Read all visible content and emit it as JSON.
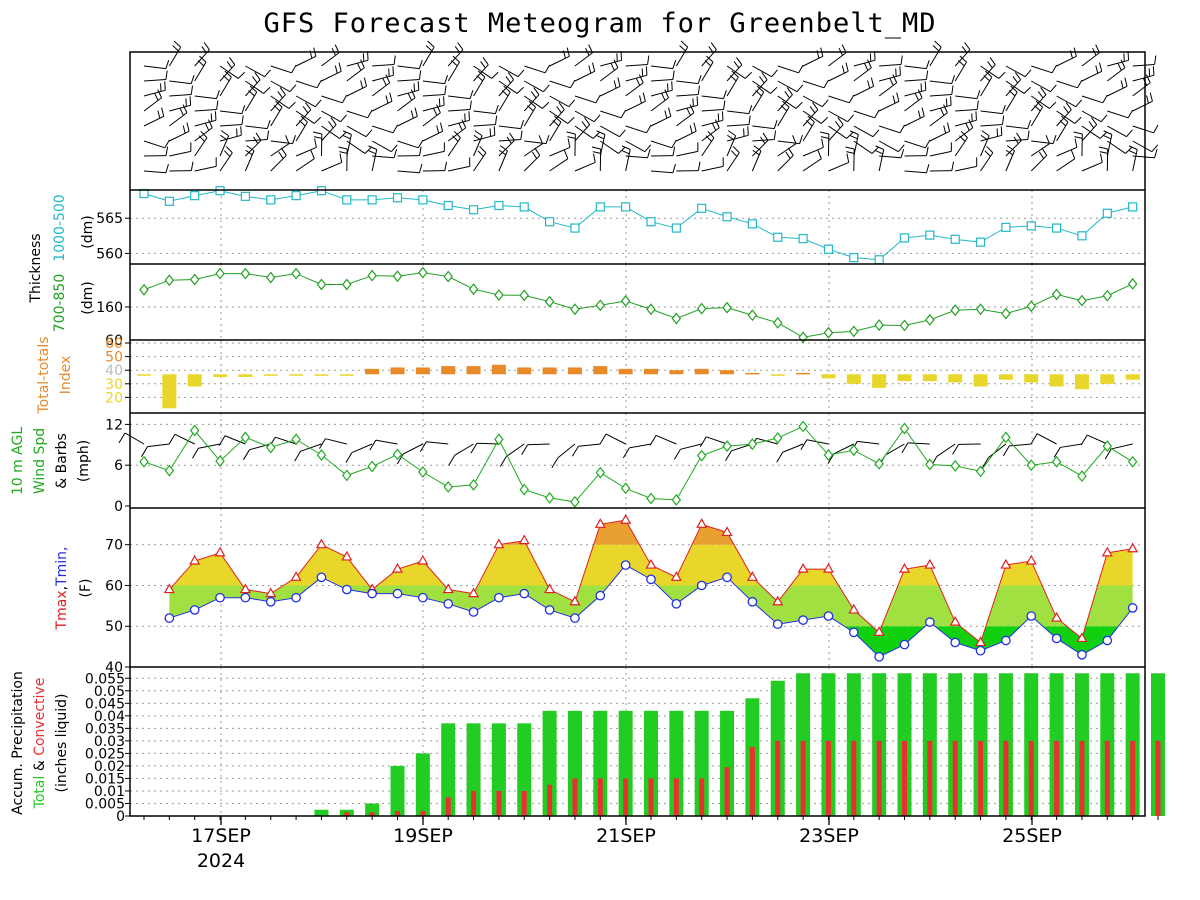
{
  "title": "GFS Forecast Meteogram for Greenbelt_MD",
  "colors": {
    "thickness_500": "#22b8c8",
    "thickness_850": "#22a022",
    "tt_low": "#e8d62a",
    "tt_high": "#e8892a",
    "wind": "#22aa22",
    "tmax": "#e02020",
    "tmin": "#2030e0",
    "precip_total": "#22cc22",
    "precip_conv": "#e83030",
    "temp_band_40_50": "#10d010",
    "temp_band_50_60": "#a0e040",
    "temp_band_60_70": "#e8d62a",
    "temp_band_70_80": "#e8a030"
  },
  "x_axis": {
    "date_labels": [
      "17SEP",
      "19SEP",
      "21SEP",
      "23SEP",
      "25SEP"
    ],
    "year_label": "2024"
  },
  "panel_labels": {
    "thickness_group": "Thickness",
    "thickness_500": "1000-500",
    "thickness_850": "700-850",
    "thickness_unit": "(dm)",
    "tt_line1": "Total-totals",
    "tt_line2": "Index",
    "wind_line1": "10 m AGL",
    "wind_line2": "Wind Spd",
    "wind_line3": "& Barbs",
    "wind_unit": "(mph)",
    "temp_tmax": "Tmax",
    "temp_comma": ",",
    "temp_tmin": "Tmin,",
    "temp_unit": "(F)",
    "precip_line1": "Accum. Precipitation",
    "precip_total": "Total",
    "precip_amp": " & ",
    "precip_conv": "Convective",
    "precip_unit": "(inches liquid)"
  },
  "chart_data": [
    {
      "panel": "upper-air-wind-barbs",
      "type": "barbs"
    },
    {
      "panel": "thickness-1000-500",
      "type": "line",
      "ylabel": "1000-500 (dm)",
      "yticks": [
        560,
        565
      ],
      "ylim": [
        558.5,
        569
      ],
      "values": [
        568.5,
        567.4,
        568.2,
        568.9,
        568.1,
        567.6,
        568.2,
        568.9,
        567.6,
        567.6,
        567.9,
        567.6,
        566.8,
        566.2,
        566.8,
        566.6,
        564.5,
        563.6,
        566.6,
        566.6,
        564.5,
        563.6,
        566.4,
        565.2,
        564.2,
        562.3,
        562.1,
        560.6,
        559.4,
        559.1,
        562.2,
        562.6,
        562,
        561.6,
        563.7,
        563.9,
        563.6,
        562.5,
        565.7,
        566.6
      ]
    },
    {
      "panel": "thickness-700-850",
      "type": "line",
      "ylabel": "700-850 (dm)",
      "yticks": [
        160
      ],
      "ylim": [
        60,
        290
      ],
      "values": [
        212,
        241,
        243,
        261,
        261,
        249,
        261,
        228,
        228,
        255,
        253,
        264,
        252,
        214,
        196,
        195,
        176,
        153,
        165,
        178,
        153,
        125,
        155,
        158,
        135,
        112,
        68,
        82,
        86,
        105,
        104,
        121,
        150,
        153,
        140,
        162,
        198,
        179,
        194,
        230
      ]
    },
    {
      "panel": "total-totals-index",
      "type": "bar",
      "ylabel": "Total-totals Index",
      "yticks": [
        20,
        30,
        40,
        50,
        60
      ],
      "ylim": [
        10,
        60
      ],
      "baseline": 37,
      "values": [
        37,
        12,
        28,
        35,
        35,
        36,
        37,
        37,
        36,
        41,
        42,
        42,
        43,
        43,
        44,
        42,
        42,
        42,
        43,
        41,
        41,
        40,
        41,
        40,
        38,
        37,
        38,
        34,
        30,
        27,
        32,
        32,
        31,
        28,
        33,
        31,
        28,
        26,
        30,
        33
      ]
    },
    {
      "panel": "wind-speed-10m",
      "type": "line",
      "ylabel": "10 m AGL Wind Spd & Barbs (mph)",
      "yticks": [
        0,
        6,
        12
      ],
      "ylim": [
        0,
        12.5
      ],
      "values": [
        6.5,
        5.2,
        11.1,
        6.6,
        10.1,
        8.6,
        9.8,
        7.5,
        4.5,
        5.8,
        7.6,
        5,
        2.8,
        3.1,
        9.8,
        2.4,
        1.2,
        0.6,
        4.9,
        2.6,
        1.1,
        0.9,
        7.4,
        8.8,
        9.1,
        10,
        11.7,
        7.5,
        8.2,
        6.2,
        11.4,
        6.1,
        5.9,
        5.1,
        10.1,
        6,
        6.5,
        4.4,
        8.8,
        6.5
      ]
    },
    {
      "panel": "temperature",
      "type": "area",
      "ylabel": "Tmax,Tmin, (F)",
      "yticks": [
        40,
        50,
        60,
        70
      ],
      "ylim": [
        40,
        79
      ],
      "tmax_x_offset": 1,
      "tmax": [
        59,
        66,
        68,
        59,
        58,
        62,
        70,
        67,
        59,
        64,
        66,
        59,
        58,
        70,
        71,
        59,
        56,
        75,
        76,
        65,
        62,
        75,
        73,
        62,
        56,
        64,
        64,
        54,
        48.5,
        64,
        65,
        51,
        46,
        65,
        66,
        52,
        47,
        68,
        69
      ],
      "tmin": [
        52,
        54,
        57,
        57,
        56,
        57,
        62,
        59,
        58,
        58,
        57,
        55.5,
        53.5,
        57,
        58,
        54,
        52,
        57.5,
        65,
        61.5,
        55.5,
        60,
        62,
        56,
        50.5,
        51.5,
        52.5,
        48.5,
        42.5,
        45.5,
        51,
        46,
        44,
        46.5,
        52.5,
        47,
        43,
        46.5,
        54.5
      ]
    },
    {
      "panel": "accumulated-precipitation",
      "type": "bar",
      "ylabel": "Accum. Precipitation Total & Convective (inches liquid)",
      "yticks": [
        0,
        0.005,
        0.01,
        0.015,
        0.02,
        0.025,
        0.03,
        0.035,
        0.04,
        0.045,
        0.05,
        0.055
      ],
      "ylim": [
        0,
        0.0575
      ],
      "total": [
        0,
        0,
        0,
        0,
        0,
        0,
        0,
        0.0025,
        0.0025,
        0.005,
        0.02,
        0.025,
        0.037,
        0.037,
        0.037,
        0.037,
        0.042,
        0.042,
        0.042,
        0.042,
        0.042,
        0.042,
        0.042,
        0.042,
        0.047,
        0.054,
        0.057,
        0.057,
        0.057,
        0.057,
        0.057,
        0.057,
        0.057,
        0.057,
        0.057,
        0.057,
        0.057,
        0.057,
        0.057,
        0.057,
        0.057
      ],
      "convective": [
        0,
        0,
        0,
        0,
        0,
        0,
        0,
        0,
        0.0015,
        0.0015,
        0.002,
        0.002,
        0.0075,
        0.01,
        0.01,
        0.01,
        0.0125,
        0.015,
        0.015,
        0.015,
        0.015,
        0.015,
        0.015,
        0.0195,
        0.0275,
        0.03,
        0.03,
        0.03,
        0.03,
        0.03,
        0.03,
        0.03,
        0.03,
        0.03,
        0.03,
        0.03,
        0.03,
        0.03,
        0.03,
        0.03,
        0.03
      ]
    }
  ]
}
